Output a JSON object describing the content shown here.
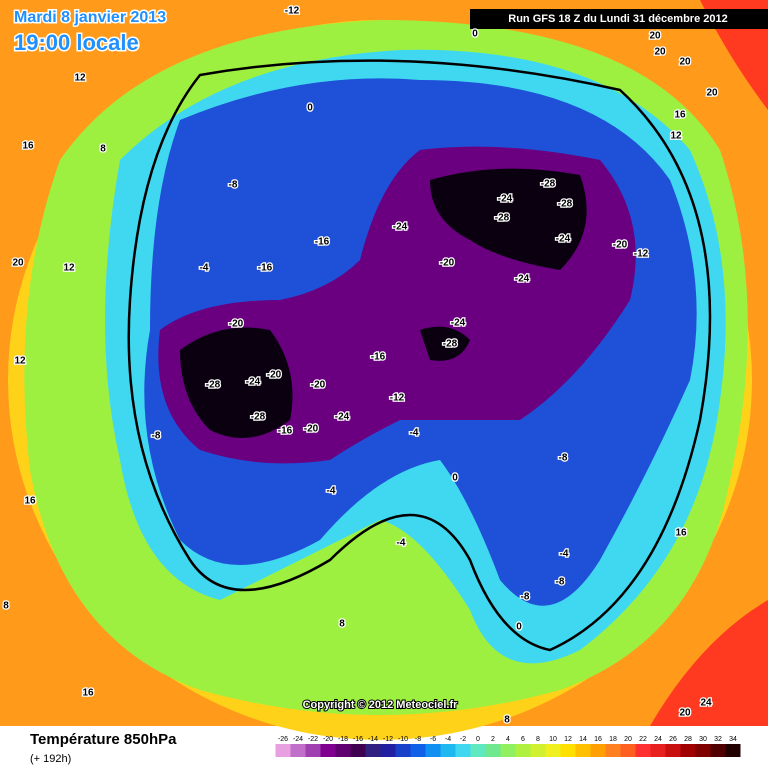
{
  "header": {
    "date": "Mardi 8 janvier 2013",
    "time": "19:00 locale",
    "run": "Run GFS 18 Z du Lundi 31 décembre 2012"
  },
  "copyright": "Copyright © 2012 Meteociel.fr",
  "footer": {
    "title": "Température 850hPa",
    "lead": "(+ 192h)"
  },
  "legend": {
    "ticks": [
      -26,
      -24,
      -22,
      -20,
      -18,
      -16,
      -14,
      -12,
      -10,
      -8,
      -6,
      -4,
      -2,
      0,
      2,
      4,
      6,
      8,
      10,
      12,
      14,
      16,
      18,
      20,
      22,
      24,
      26,
      28,
      30,
      32,
      34
    ],
    "colors": [
      "#e8a0e0",
      "#c070c8",
      "#a040b0",
      "#800090",
      "#600070",
      "#400050",
      "#302080",
      "#2020a0",
      "#1840c8",
      "#1060e8",
      "#1090f0",
      "#20b8f0",
      "#40d8f0",
      "#60e8c0",
      "#70e890",
      "#90f060",
      "#b0f040",
      "#d0f030",
      "#f0f020",
      "#ffe000",
      "#ffc000",
      "#ffa000",
      "#ff8020",
      "#ff6020",
      "#ff3030",
      "#e82020",
      "#c81010",
      "#a00000",
      "#800000",
      "#500000",
      "#200000"
    ]
  },
  "contour_labels": [
    -12,
    0,
    20,
    20,
    20,
    12,
    0,
    16,
    20,
    16,
    8,
    12,
    -8,
    -28,
    -28,
    -24,
    -28,
    -24,
    -16,
    -24,
    -20,
    -12,
    20,
    12,
    -20,
    -24,
    -16,
    -4,
    -20,
    -24,
    -28,
    -16,
    -20,
    -28,
    -24,
    -20,
    -12,
    -28,
    -24,
    -20,
    -16,
    -8,
    -4,
    -8,
    -4,
    0,
    -4,
    -4,
    -8,
    -8,
    0,
    16,
    8,
    12,
    16,
    20,
    24,
    8,
    16,
    8
  ]
}
